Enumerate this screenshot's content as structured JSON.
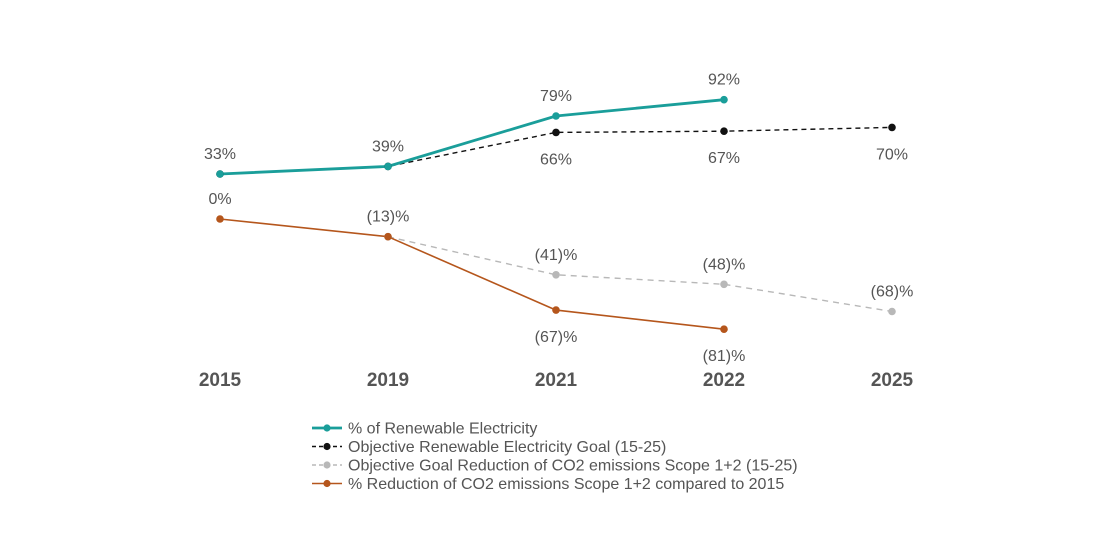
{
  "chart_data": {
    "type": "line",
    "title": "",
    "xlabel": "",
    "ylabel": "",
    "x": [
      "2015",
      "2019",
      "2021",
      "2022",
      "2025"
    ],
    "ylim": [
      -81,
      92
    ],
    "grid": false,
    "legend_position": "bottom",
    "series": [
      {
        "name": "% of Renewable Electricity",
        "color": "#1a9e9a",
        "style": "solid",
        "values": [
          33,
          39,
          79,
          92,
          null
        ],
        "labels": [
          "33%",
          "39%",
          "79%",
          "92%",
          null
        ],
        "label_pos": [
          "above",
          "above",
          "above",
          "above",
          null
        ]
      },
      {
        "name": "Objective Renewable Electricity Goal (15-25)",
        "color": "#111111",
        "style": "dashed",
        "values": [
          33,
          39,
          66,
          67,
          70
        ],
        "labels": [
          null,
          null,
          "66%",
          "67%",
          "70%"
        ],
        "label_pos": [
          null,
          null,
          "below",
          "below",
          "below"
        ]
      },
      {
        "name": "Objective Goal Reduction of CO2 emissions Scope 1+2 (15-25)",
        "color": "#b8b8b8",
        "style": "dashed",
        "values": [
          null,
          -13,
          -41,
          -48,
          -68
        ],
        "labels": [
          null,
          null,
          "(41)%",
          "(48)%",
          "(68)%"
        ],
        "label_pos": [
          null,
          null,
          "above",
          "above",
          "above"
        ]
      },
      {
        "name": "% Reduction of CO2 emissions Scope 1+2 compared to 2015",
        "color": "#b5561c",
        "style": "solid",
        "values": [
          0,
          -13,
          -67,
          -81,
          null
        ],
        "labels": [
          "0%",
          "(13)%",
          "(67)%",
          "(81)%",
          null
        ],
        "label_pos": [
          "above",
          "above",
          "below",
          "below",
          null
        ]
      }
    ]
  }
}
